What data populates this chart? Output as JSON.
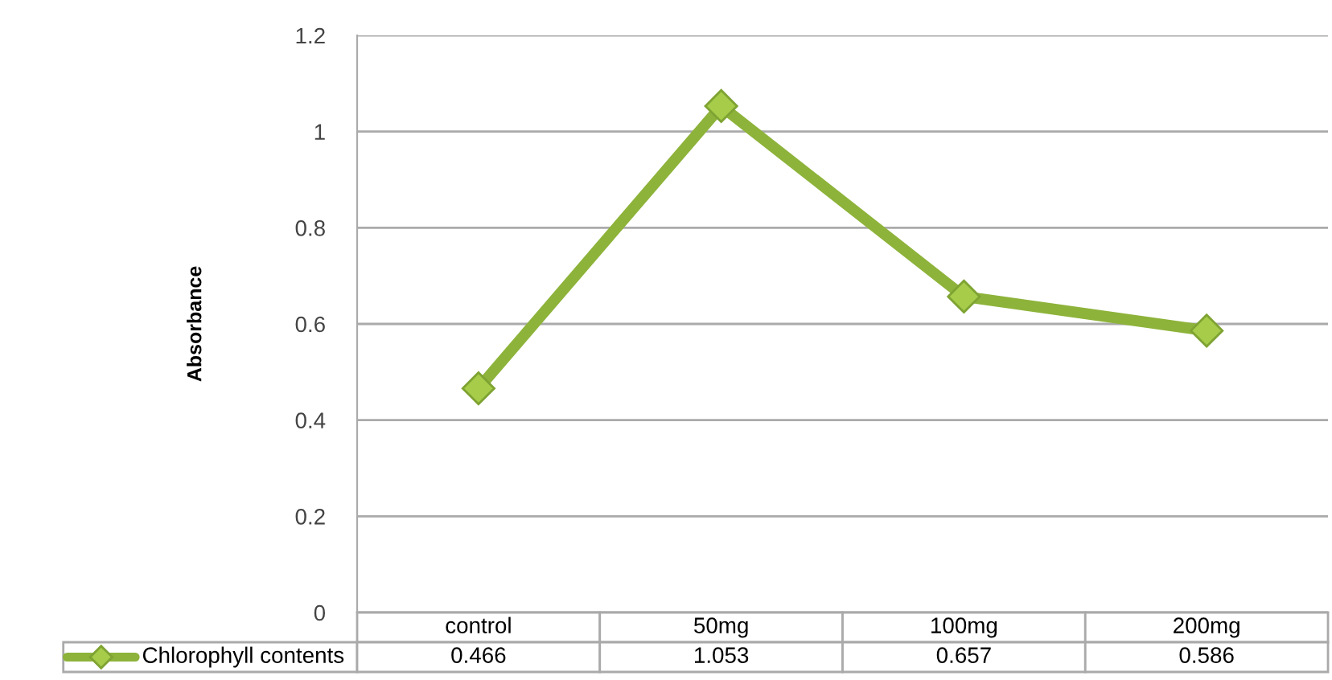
{
  "chart_data": {
    "type": "line",
    "ylabel": "Absorbance",
    "categories": [
      "control",
      "50mg",
      "100mg",
      "200mg"
    ],
    "series": [
      {
        "name": "Chlorophyll contents",
        "color": "#8db33a",
        "values": [
          0.466,
          1.053,
          0.657,
          0.586
        ]
      }
    ],
    "ylim": [
      0,
      1.2
    ],
    "yticks": [
      0,
      0.2,
      0.4,
      0.6,
      0.8,
      1,
      1.2
    ],
    "grid": "y",
    "marker": "diamond",
    "line_style": "solid",
    "data_labels": true,
    "legend": "bottom"
  }
}
